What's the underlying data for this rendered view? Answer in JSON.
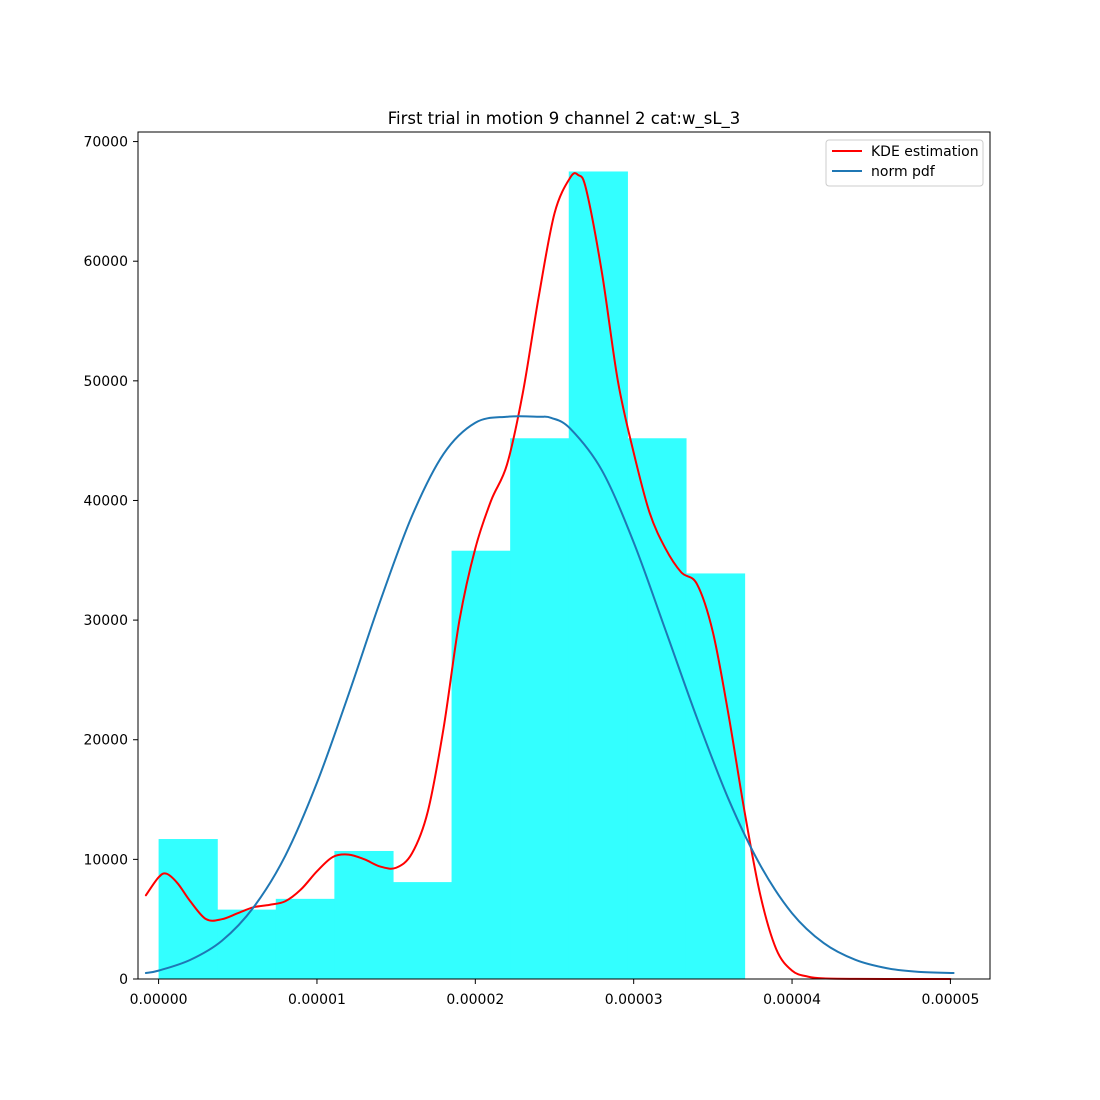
{
  "chart_data": {
    "type": "bar",
    "title": "First trial in motion 9 channel 2 cat:w_sL_3",
    "xlabel": "",
    "ylabel": "",
    "xlim": [
      -1.3e-06,
      5.25e-05
    ],
    "ylim": [
      0,
      70800
    ],
    "grid": false,
    "legend_position": "top-right",
    "xticks": [
      0,
      1e-05,
      2e-05,
      3e-05,
      4e-05,
      5e-05
    ],
    "xtick_labels": [
      "0.00000",
      "0.00001",
      "0.00002",
      "0.00003",
      "0.00004",
      "0.00005"
    ],
    "yticks": [
      0,
      10000,
      20000,
      30000,
      40000,
      50000,
      60000,
      70000
    ],
    "ytick_labels": [
      "0",
      "10000",
      "20000",
      "30000",
      "40000",
      "50000",
      "60000",
      "70000"
    ],
    "histogram": {
      "color": "#33ffff",
      "bin_edges": [
        0.0,
        3.7e-06,
        7.4e-06,
        1.11e-05,
        1.48e-05,
        1.85e-05,
        2.22e-05,
        2.59e-05,
        2.96e-05,
        3.33e-05,
        3.7e-05
      ],
      "values": [
        11700,
        5800,
        6700,
        10700,
        8100,
        35800,
        45200,
        67500,
        45200,
        33900
      ]
    },
    "series": [
      {
        "name": "KDE estimation",
        "color": "#ff0000",
        "x": [
          -8e-07,
          0.0,
          5e-07,
          1.2e-06,
          2e-06,
          3e-06,
          4e-06,
          5e-06,
          6e-06,
          7e-06,
          8e-06,
          9e-06,
          1e-05,
          1.1e-05,
          1.2e-05,
          1.3e-05,
          1.4e-05,
          1.5e-05,
          1.6e-05,
          1.7e-05,
          1.8e-05,
          1.9e-05,
          2e-05,
          2.1e-05,
          2.2e-05,
          2.3e-05,
          2.4e-05,
          2.5e-05,
          2.6e-05,
          2.65e-05,
          2.7e-05,
          2.8e-05,
          2.9e-05,
          3e-05,
          3.1e-05,
          3.2e-05,
          3.3e-05,
          3.4e-05,
          3.5e-05,
          3.6e-05,
          3.7e-05,
          3.8e-05,
          3.9e-05,
          4e-05,
          4.1e-05,
          4.2e-05,
          4.4e-05,
          4.8e-05,
          5e-05
        ],
        "y": [
          7000,
          8500,
          8800,
          8000,
          6500,
          5000,
          5000,
          5500,
          6000,
          6200,
          6500,
          7500,
          9000,
          10200,
          10400,
          10000,
          9400,
          9300,
          10500,
          14000,
          21000,
          30000,
          36000,
          40000,
          43000,
          49000,
          57000,
          64000,
          67000,
          67200,
          66000,
          59000,
          50000,
          44000,
          39000,
          36000,
          34000,
          33000,
          29000,
          22000,
          14000,
          7000,
          2500,
          700,
          200,
          50,
          10,
          0,
          0
        ]
      },
      {
        "name": "norm pdf",
        "color": "#1f77b4",
        "x": [
          -8e-07,
          0.0,
          2e-06,
          4e-06,
          6e-06,
          8e-06,
          1e-05,
          1.2e-05,
          1.4e-05,
          1.6e-05,
          1.8e-05,
          2e-05,
          2.2e-05,
          2.4e-05,
          2.48e-05,
          2.6e-05,
          2.8e-05,
          3e-05,
          3.2e-05,
          3.4e-05,
          3.6e-05,
          3.8e-05,
          4e-05,
          4.2e-05,
          4.4e-05,
          4.6e-05,
          4.8e-05,
          5.02e-05
        ],
        "y": [
          500,
          700,
          1600,
          3200,
          6000,
          10300,
          16400,
          23800,
          31600,
          38700,
          43900,
          46500,
          47000,
          47000,
          46900,
          46000,
          42500,
          36500,
          29200,
          21800,
          15000,
          9500,
          5500,
          3000,
          1600,
          900,
          600,
          500
        ]
      }
    ]
  }
}
